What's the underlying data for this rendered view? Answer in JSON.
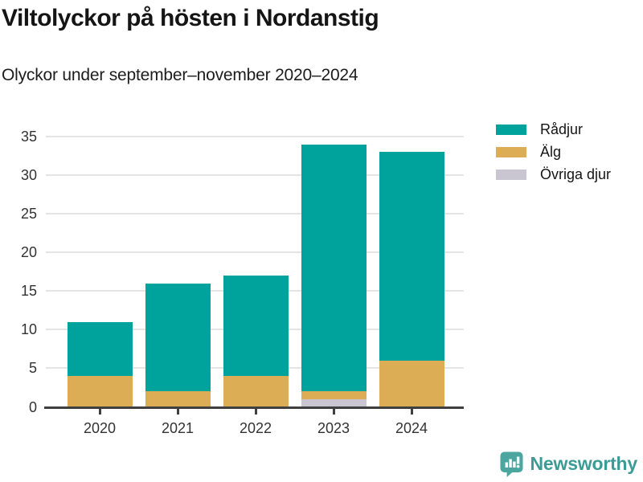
{
  "header": {
    "title": "Viltolyckor på hösten i Nordanstig",
    "subtitle": "Olyckor under september–november 2020–2024"
  },
  "chart_data": {
    "type": "bar",
    "stacked": true,
    "title": "Viltolyckor på hösten i Nordanstig",
    "subtitle": "Olyckor under september–november 2020–2024",
    "xlabel": "",
    "ylabel": "",
    "categories": [
      "2020",
      "2021",
      "2022",
      "2023",
      "2024"
    ],
    "series": [
      {
        "name": "Rådjur",
        "color": "#00a39b",
        "values": [
          7,
          14,
          13,
          32,
          27
        ]
      },
      {
        "name": "Älg",
        "color": "#ddad55",
        "values": [
          4,
          2,
          4,
          1,
          6
        ]
      },
      {
        "name": "Övriga djur",
        "color": "#c9c6d2",
        "values": [
          0,
          0,
          0,
          1,
          0
        ]
      }
    ],
    "stack_order_bottom_to_top": [
      "Övriga djur",
      "Älg",
      "Rådjur"
    ],
    "stack_totals": [
      11,
      16,
      17,
      34,
      33
    ],
    "ylim": [
      0,
      35
    ],
    "yticks": [
      0,
      5,
      10,
      15,
      20,
      25,
      30,
      35
    ],
    "grid": true,
    "legend_position": "top-right"
  },
  "footer": {
    "brand": "Newsworthy",
    "logo_icon": "newsworthy-speech-bubble-bar-chart-icon",
    "brand_color": "#3d9b96",
    "logo_fill": "#4ba6a0"
  },
  "colors": {
    "background": "#ffffff",
    "axis_line": "#3f3f3f",
    "gridline": "#e4e4e4",
    "tick_label": "#333333",
    "title_text": "#151515"
  }
}
